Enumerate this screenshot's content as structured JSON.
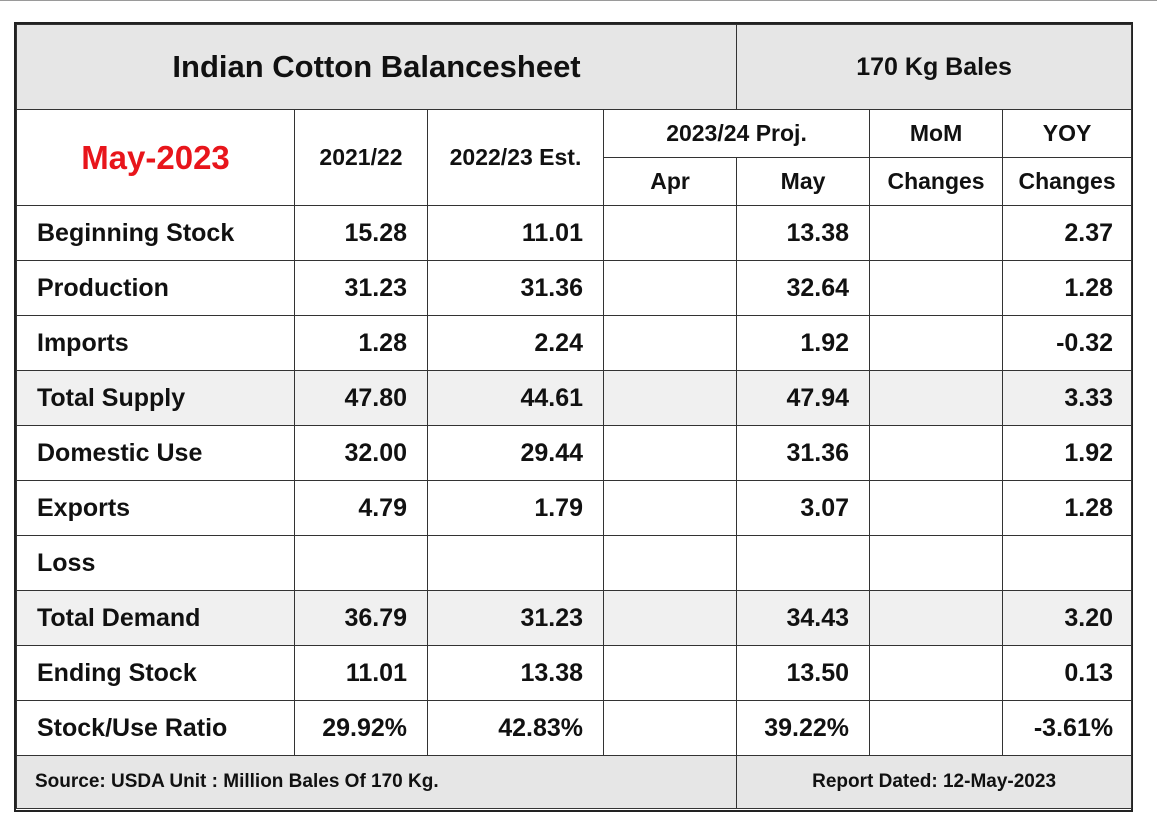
{
  "title": "Indian Cotton Balancesheet",
  "unit_label": "170 Kg Bales",
  "report_month": "May-2023",
  "headers": {
    "col_2021": "2021/22",
    "col_2022": "2022/23 Est.",
    "col_2023_proj": "2023/24 Proj.",
    "col_apr": "Apr",
    "col_may": "May",
    "mom_top": "MoM",
    "mom_bottom": "Changes",
    "yoy_top": "YOY",
    "yoy_bottom": "Changes"
  },
  "rows": [
    {
      "label": "Beginning Stock",
      "y2021": "15.28",
      "y2022": "11.01",
      "apr": "",
      "may": "13.38",
      "mom": "",
      "yoy": "2.37"
    },
    {
      "label": "Production",
      "y2021": "31.23",
      "y2022": "31.36",
      "apr": "",
      "may": "32.64",
      "mom": "",
      "yoy": "1.28"
    },
    {
      "label": "Imports",
      "y2021": "1.28",
      "y2022": "2.24",
      "apr": "",
      "may": "1.92",
      "mom": "",
      "yoy": "-0.32"
    },
    {
      "label": "Total Supply",
      "y2021": "47.80",
      "y2022": "44.61",
      "apr": "",
      "may": "47.94",
      "mom": "",
      "yoy": "3.33"
    },
    {
      "label": "Domestic Use",
      "y2021": "32.00",
      "y2022": "29.44",
      "apr": "",
      "may": "31.36",
      "mom": "",
      "yoy": "1.92"
    },
    {
      "label": "Exports",
      "y2021": "4.79",
      "y2022": "1.79",
      "apr": "",
      "may": "3.07",
      "mom": "",
      "yoy": "1.28"
    },
    {
      "label": "Loss",
      "y2021": "",
      "y2022": "",
      "apr": "",
      "may": "",
      "mom": "",
      "yoy": ""
    },
    {
      "label": "Total Demand",
      "y2021": "36.79",
      "y2022": "31.23",
      "apr": "",
      "may": "34.43",
      "mom": "",
      "yoy": "3.20"
    },
    {
      "label": "Ending Stock",
      "y2021": "11.01",
      "y2022": "13.38",
      "apr": "",
      "may": "13.50",
      "mom": "",
      "yoy": "0.13"
    },
    {
      "label": "Stock/Use Ratio",
      "y2021": "29.92%",
      "y2022": "42.83%",
      "apr": "",
      "may": "39.22%",
      "mom": "",
      "yoy": "-3.61%"
    }
  ],
  "footer": {
    "source": "Source: USDA  Unit : Million Bales Of 170 Kg.",
    "report_date": "Report Dated: 12-May-2023"
  }
}
